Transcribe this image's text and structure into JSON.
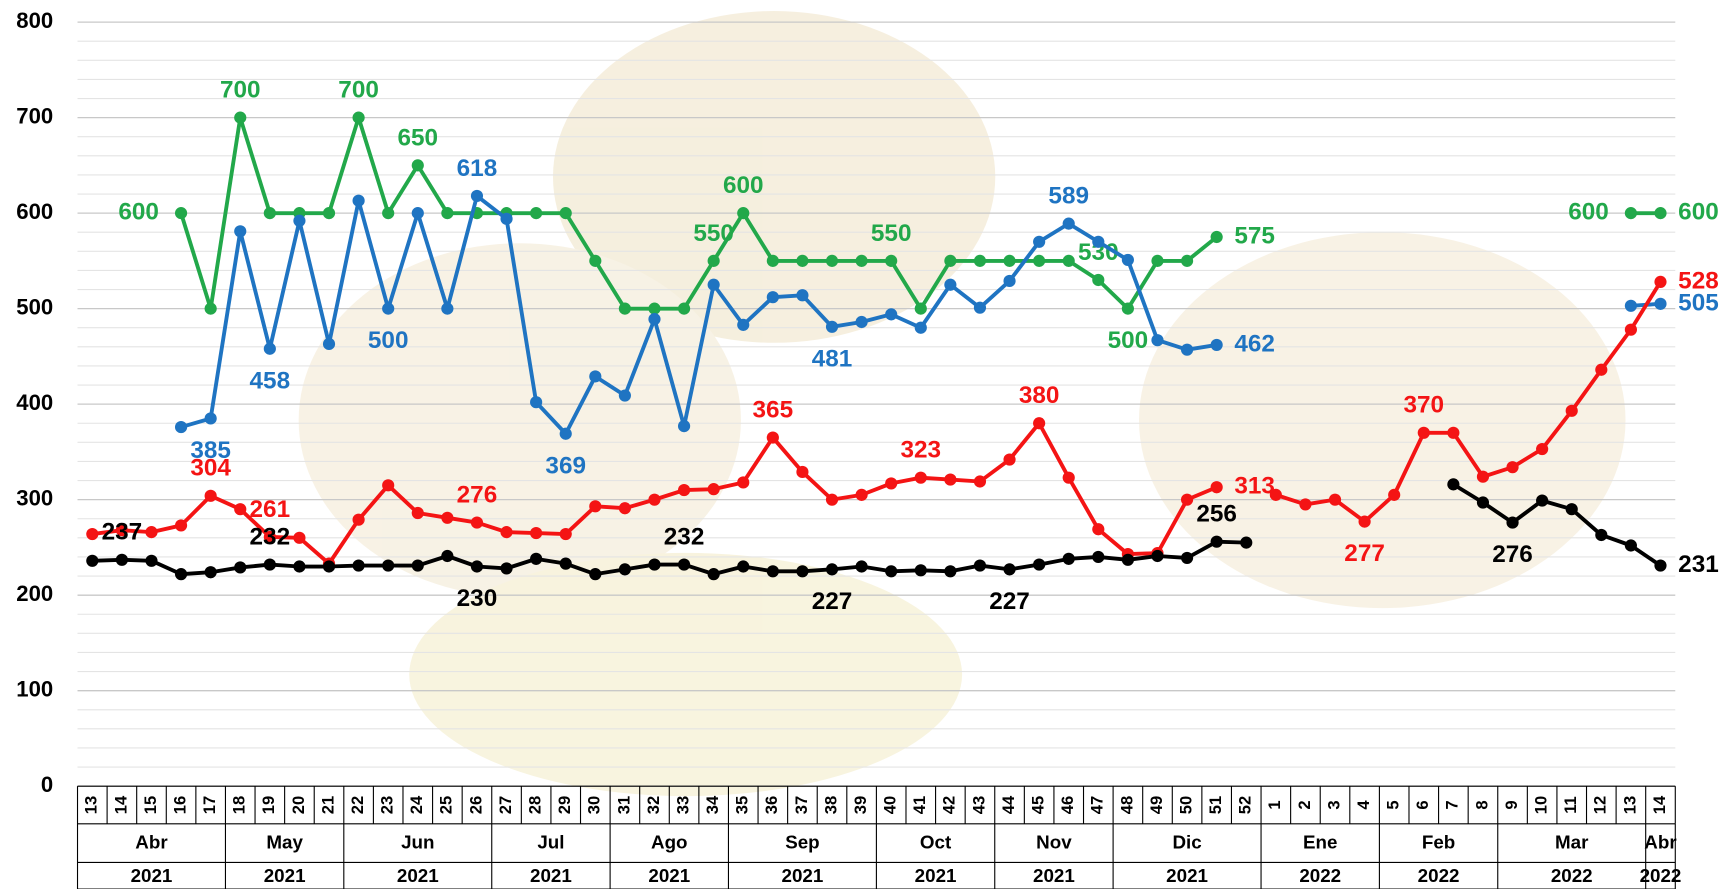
{
  "chart_data": {
    "type": "line",
    "categories": [
      "13",
      "14",
      "15",
      "16",
      "17",
      "18",
      "19",
      "20",
      "21",
      "22",
      "23",
      "24",
      "25",
      "26",
      "27",
      "28",
      "29",
      "30",
      "31",
      "32",
      "33",
      "34",
      "35",
      "36",
      "37",
      "38",
      "39",
      "40",
      "41",
      "42",
      "43",
      "44",
      "45",
      "46",
      "47",
      "48",
      "49",
      "50",
      "51",
      "52",
      "1",
      "2",
      "3",
      "4",
      "5",
      "6",
      "7",
      "8",
      "9",
      "10",
      "11",
      "12",
      "13",
      "14"
    ],
    "months": [
      "Abr",
      "Abr",
      "Abr",
      "Abr",
      "Abr",
      "May",
      "May",
      "May",
      "May",
      "Jun",
      "Jun",
      "Jun",
      "Jun",
      "Jun",
      "Jul",
      "Jul",
      "Jul",
      "Jul",
      "Ago",
      "Ago",
      "Ago",
      "Ago",
      "Sep",
      "Sep",
      "Sep",
      "Sep",
      "Sep",
      "Oct",
      "Oct",
      "Oct",
      "Oct",
      "Nov",
      "Nov",
      "Nov",
      "Nov",
      "Dic",
      "Dic",
      "Dic",
      "Dic",
      "Dic",
      "Ene",
      "Ene",
      "Ene",
      "Ene",
      "Feb",
      "Feb",
      "Feb",
      "Feb",
      "Mar",
      "Mar",
      "Mar",
      "Mar",
      "Mar",
      "Abr"
    ],
    "years": [
      "2021",
      "2021",
      "2021",
      "2021",
      "2021",
      "2021",
      "2021",
      "2021",
      "2021",
      "2021",
      "2021",
      "2021",
      "2021",
      "2021",
      "2021",
      "2021",
      "2021",
      "2021",
      "2021",
      "2021",
      "2021",
      "2021",
      "2021",
      "2021",
      "2021",
      "2021",
      "2021",
      "2021",
      "2021",
      "2021",
      "2021",
      "2021",
      "2021",
      "2021",
      "2021",
      "2021",
      "2021",
      "2021",
      "2021",
      "2021",
      "2022",
      "2022",
      "2022",
      "2022",
      "2022",
      "2022",
      "2022",
      "2022",
      "2022",
      "2022",
      "2022",
      "2022",
      "2022",
      "2022"
    ],
    "series": [
      {
        "color": "#22a84a",
        "values": [
          null,
          null,
          null,
          600,
          500,
          700,
          600,
          600,
          600,
          700,
          600,
          650,
          600,
          600,
          600,
          600,
          600,
          550,
          500,
          500,
          500,
          550,
          600,
          550,
          550,
          550,
          550,
          550,
          500,
          550,
          550,
          550,
          550,
          550,
          530,
          500,
          550,
          550,
          575,
          null,
          null,
          null,
          null,
          null,
          null,
          null,
          null,
          null,
          null,
          null,
          null,
          null,
          600,
          600
        ],
        "value_labels": [
          null,
          null,
          null,
          "600",
          null,
          "700",
          null,
          null,
          null,
          "700",
          null,
          "650",
          null,
          null,
          null,
          null,
          null,
          null,
          null,
          null,
          null,
          "550",
          "600",
          null,
          null,
          null,
          null,
          "550",
          null,
          null,
          null,
          null,
          null,
          null,
          "530",
          "500",
          null,
          null,
          "575",
          null,
          null,
          null,
          null,
          null,
          null,
          null,
          null,
          null,
          null,
          null,
          null,
          null,
          "600",
          "600"
        ]
      },
      {
        "color": "#1f74c2",
        "values": [
          null,
          null,
          null,
          376,
          385,
          581,
          458,
          592,
          463,
          613,
          500,
          600,
          500,
          618,
          594,
          402,
          369,
          429,
          409,
          489,
          377,
          525,
          483,
          512,
          514,
          481,
          486,
          494,
          480,
          525,
          501,
          529,
          570,
          589,
          570,
          551,
          467,
          457,
          462,
          null,
          null,
          null,
          null,
          null,
          null,
          null,
          null,
          null,
          null,
          null,
          null,
          null,
          503,
          505
        ],
        "value_labels": [
          null,
          null,
          null,
          null,
          "385",
          null,
          "458",
          null,
          null,
          null,
          "500",
          null,
          null,
          "618",
          null,
          null,
          "369",
          null,
          null,
          null,
          null,
          null,
          null,
          null,
          null,
          "481",
          null,
          null,
          null,
          null,
          null,
          null,
          null,
          "589",
          null,
          null,
          null,
          null,
          "462",
          null,
          null,
          null,
          null,
          null,
          null,
          null,
          null,
          null,
          null,
          null,
          null,
          null,
          null,
          "505"
        ]
      },
      {
        "color": "#f41414",
        "values": [
          264,
          268,
          266,
          273,
          304,
          290,
          261,
          260,
          233,
          279,
          315,
          286,
          281,
          276,
          266,
          265,
          264,
          293,
          291,
          300,
          310,
          311,
          318,
          365,
          329,
          300,
          305,
          317,
          323,
          321,
          319,
          342,
          380,
          323,
          269,
          243,
          244,
          300,
          313,
          null,
          305,
          295,
          300,
          277,
          305,
          370,
          370,
          324,
          334,
          353,
          393,
          436,
          478,
          528
        ],
        "value_labels": [
          null,
          null,
          null,
          null,
          "304",
          null,
          "261",
          null,
          null,
          null,
          null,
          null,
          null,
          "276",
          null,
          null,
          null,
          null,
          null,
          null,
          null,
          null,
          null,
          "365",
          null,
          null,
          null,
          null,
          "323",
          null,
          null,
          null,
          "380",
          null,
          null,
          null,
          null,
          null,
          "313",
          null,
          null,
          null,
          null,
          "277",
          null,
          "370",
          null,
          null,
          null,
          null,
          null,
          null,
          null,
          "528"
        ]
      },
      {
        "color": "#000000",
        "values": [
          236,
          237,
          236,
          222,
          224,
          229,
          232,
          230,
          230,
          231,
          231,
          231,
          241,
          230,
          228,
          238,
          233,
          222,
          227,
          232,
          232,
          222,
          230,
          225,
          225,
          227,
          230,
          225,
          226,
          225,
          231,
          227,
          232,
          238,
          240,
          237,
          241,
          239,
          256,
          255,
          null,
          null,
          null,
          null,
          null,
          null,
          316,
          297,
          276,
          299,
          290,
          263,
          252,
          231
        ],
        "value_labels": [
          null,
          "237",
          null,
          null,
          null,
          null,
          "232",
          null,
          null,
          null,
          null,
          null,
          null,
          "230",
          null,
          null,
          null,
          null,
          null,
          null,
          "232",
          null,
          null,
          null,
          null,
          "227",
          null,
          null,
          null,
          null,
          null,
          "227",
          null,
          null,
          null,
          null,
          null,
          null,
          "256",
          null,
          null,
          null,
          null,
          null,
          null,
          null,
          null,
          null,
          "276",
          null,
          null,
          null,
          null,
          "231"
        ]
      }
    ],
    "ylim": [
      0,
      800
    ],
    "yticks": [
      0,
      100,
      200,
      300,
      400,
      500,
      600,
      700,
      800
    ],
    "yminorticks": [
      20,
      40,
      60,
      80,
      120,
      140,
      160,
      180,
      220,
      240,
      260,
      280,
      320,
      340,
      360,
      380,
      420,
      440,
      460,
      480,
      520,
      540,
      560,
      580,
      620,
      640,
      660,
      680,
      720,
      740,
      760,
      780
    ],
    "grid": true
  }
}
